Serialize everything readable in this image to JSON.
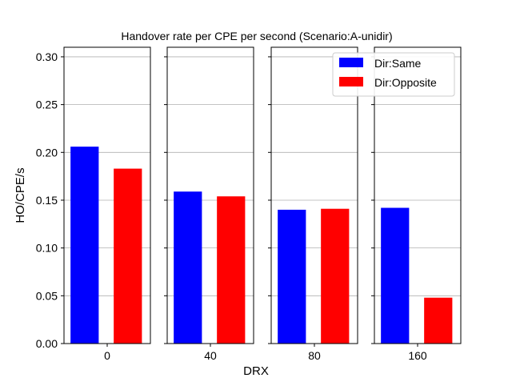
{
  "chart_data": {
    "type": "bar",
    "title": "Handover rate per CPE per second (Scenario:A-unidir)",
    "xlabel": "DRX",
    "ylabel": "HO/CPE/s",
    "ylim": [
      0,
      0.31
    ],
    "yticks": [
      "0.00",
      "0.05",
      "0.10",
      "0.15",
      "0.20",
      "0.25",
      "0.30"
    ],
    "ytick_values": [
      0,
      0.05,
      0.1,
      0.15,
      0.2,
      0.25,
      0.3
    ],
    "grid": "horizontal",
    "legend_position": "top-right",
    "categories": [
      "0",
      "40",
      "80",
      "160"
    ],
    "series": [
      {
        "name": "Dir:Same",
        "color": "#0000ff",
        "values": [
          0.206,
          0.159,
          0.14,
          0.142
        ]
      },
      {
        "name": "Dir:Opposite",
        "color": "#ff0000",
        "values": [
          0.183,
          0.154,
          0.141,
          0.048
        ]
      }
    ]
  }
}
